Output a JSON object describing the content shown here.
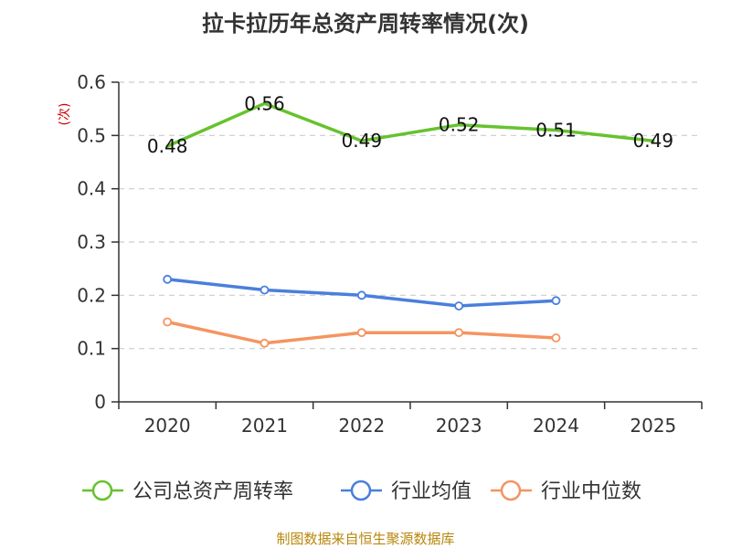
{
  "chart_data": {
    "type": "line",
    "title": "拉卡拉历年总资产周转率情况(次)",
    "ylabel": "(次)",
    "categories": [
      "2020",
      "2021",
      "2022",
      "2023",
      "2024",
      "2025"
    ],
    "ylim": [
      0,
      0.6
    ],
    "yticks": [
      "0",
      "0.1",
      "0.2",
      "0.3",
      "0.4",
      "0.5",
      "0.6"
    ],
    "grid": true,
    "legend_position": "bottom",
    "series": [
      {
        "name": "公司总资产周转率",
        "color": "#66c22e",
        "values": [
          0.48,
          0.56,
          0.49,
          0.52,
          0.51,
          0.49
        ],
        "labels": [
          "0.48",
          "0.56",
          "0.49",
          "0.52",
          "0.51",
          "0.49"
        ],
        "show_markers": false
      },
      {
        "name": "行业均值",
        "color": "#4a7fdc",
        "values": [
          0.23,
          0.21,
          0.2,
          0.18,
          0.19,
          null
        ],
        "show_markers": true
      },
      {
        "name": "行业中位数",
        "color": "#f59460",
        "values": [
          0.15,
          0.11,
          0.13,
          0.13,
          0.12,
          null
        ],
        "show_markers": true
      }
    ]
  },
  "source": "制图数据来自恒生聚源数据库"
}
